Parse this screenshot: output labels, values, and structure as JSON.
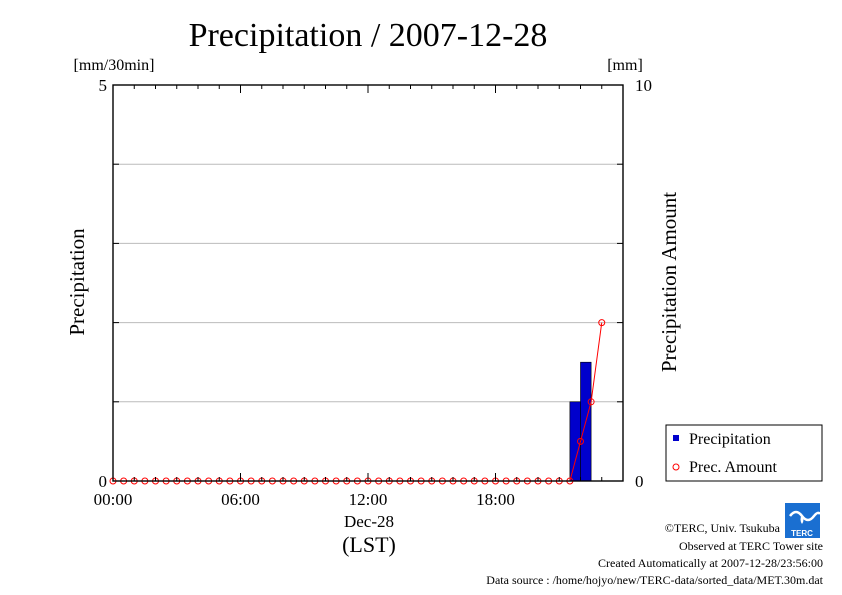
{
  "chart_data": {
    "type": "bar",
    "title": "Precipitation / 2007-12-28",
    "ylabel": "Precipitation",
    "y2label": "Precipitation Amount",
    "yunit": "[mm/30min]",
    "y2unit": "[mm]",
    "ylim": [
      0,
      5
    ],
    "y2lim": [
      0,
      10
    ],
    "y_ticks": [
      "0",
      "5"
    ],
    "y2_ticks": [
      "0",
      "10"
    ],
    "xlim_hours": [
      0,
      24
    ],
    "x_ticks": [
      "00:00",
      "06:00",
      "12:00",
      "18:00"
    ],
    "x_date_label": "Dec-28",
    "x_unit_label": "(LST)",
    "grid": true,
    "legend_position": "lower-right outside plot",
    "bar_color": "#0000cc",
    "line_color": "#ff0000",
    "series": [
      {
        "name": "Precipitation",
        "kind": "bar",
        "axis": "left",
        "start_hours": [
          21.5,
          22.0
        ],
        "values": [
          1.0,
          1.5
        ]
      },
      {
        "name": "Prec. Amount",
        "kind": "line",
        "axis": "right",
        "time_hours": [
          0,
          0.5,
          1,
          1.5,
          2,
          2.5,
          3,
          3.5,
          4,
          4.5,
          5,
          5.5,
          6,
          6.5,
          7,
          7.5,
          8,
          8.5,
          9,
          9.5,
          10,
          10.5,
          11,
          11.5,
          12,
          12.5,
          13,
          13.5,
          14,
          14.5,
          15,
          15.5,
          16,
          16.5,
          17,
          17.5,
          18,
          18.5,
          19,
          19.5,
          20,
          20.5,
          21,
          21.5,
          22,
          22.5,
          23
        ],
        "values": [
          0,
          0,
          0,
          0,
          0,
          0,
          0,
          0,
          0,
          0,
          0,
          0,
          0,
          0,
          0,
          0,
          0,
          0,
          0,
          0,
          0,
          0,
          0,
          0,
          0,
          0,
          0,
          0,
          0,
          0,
          0,
          0,
          0,
          0,
          0,
          0,
          0,
          0,
          0,
          0,
          0,
          0,
          0,
          0,
          1,
          2,
          4
        ]
      }
    ]
  },
  "footer": {
    "logo_text": "TERC",
    "copyright": "©TERC, Univ. Tsukuba",
    "observed": "Observed at TERC Tower site",
    "created": "Created Automatically at 2007-12-28/23:56:00",
    "source": "Data source : /home/hojyo/new/TERC-data/sorted_data/MET.30m.dat"
  }
}
